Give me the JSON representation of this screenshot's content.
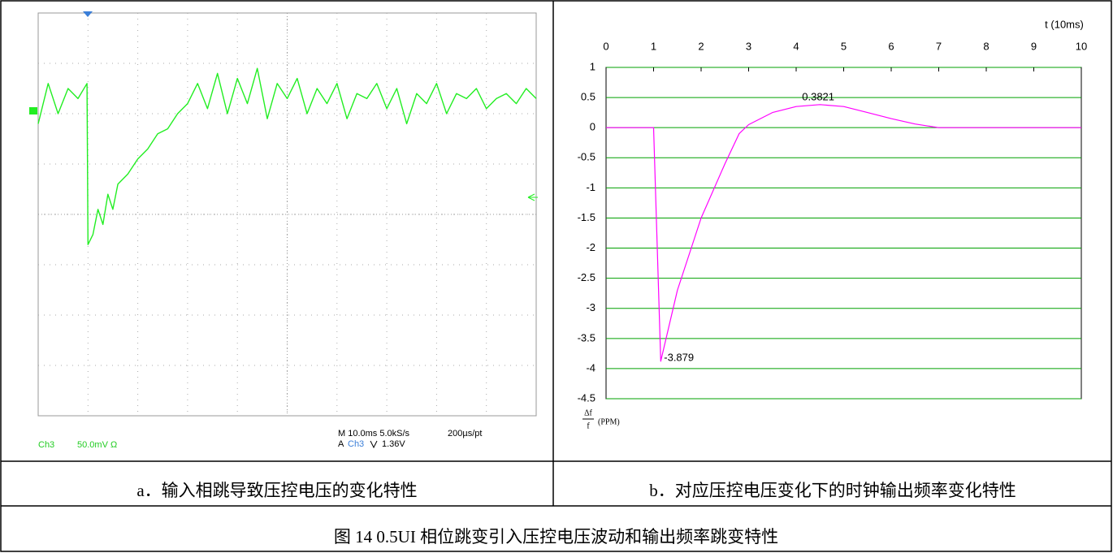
{
  "caption_a": "a．输入相跳导致压控电压的变化特性",
  "caption_b": "b．对应压控电压变化下的时钟输出频率变化特性",
  "figure_caption": "图 14  0.5UI 相位跳变引入压控电压波动和输出频率跳变特性",
  "chart_data": [
    {
      "type": "line",
      "color": "#22ee22",
      "x": [
        0,
        0.2,
        0.4,
        0.6,
        0.8,
        0.98,
        1.0,
        1.1,
        1.2,
        1.3,
        1.4,
        1.5,
        1.6,
        1.8,
        2.0,
        2.2,
        2.4,
        2.6,
        2.8,
        3.0,
        3.2,
        3.4,
        3.6,
        3.8,
        4.0,
        4.2,
        4.4,
        4.6,
        4.8,
        5.0,
        5.2,
        5.4,
        5.6,
        5.8,
        6.0,
        6.2,
        6.4,
        6.6,
        6.8,
        7.0,
        7.2,
        7.4,
        7.6,
        7.8,
        8.0,
        8.2,
        8.4,
        8.6,
        8.8,
        9.0,
        9.2,
        9.4,
        9.6,
        9.8,
        10.0
      ],
      "values": [
        1.8,
        2.6,
        2.0,
        2.5,
        2.3,
        2.6,
        -0.6,
        -0.4,
        0.1,
        -0.2,
        0.4,
        0.1,
        0.6,
        0.8,
        1.1,
        1.3,
        1.6,
        1.7,
        2.0,
        2.2,
        2.6,
        2.1,
        2.8,
        2.0,
        2.7,
        2.2,
        2.9,
        1.9,
        2.6,
        2.3,
        2.7,
        2.0,
        2.5,
        2.2,
        2.6,
        1.9,
        2.4,
        2.3,
        2.6,
        2.1,
        2.5,
        1.8,
        2.4,
        2.2,
        2.6,
        2.0,
        2.4,
        2.3,
        2.5,
        2.1,
        2.3,
        2.4,
        2.2,
        2.5,
        2.3
      ],
      "xlim": [
        0,
        10
      ],
      "ylim": [
        -4,
        4
      ],
      "readouts": {
        "channel": "Ch3",
        "scale": "50.0mV Ω",
        "timebase": "M 10.0ms 5.0kS/s",
        "resolution": "200µs/pt",
        "trigger_mode": "A",
        "trigger_source": "Ch3",
        "trigger_level": "1.36V"
      }
    },
    {
      "type": "line",
      "color": "#ff00ff",
      "grid": true,
      "grid_color": "#00a000",
      "x": [
        0,
        1,
        1.15,
        1.5,
        2,
        2.5,
        2.8,
        3,
        3.5,
        4,
        4.5,
        5,
        5.5,
        6,
        6.5,
        7,
        7.5,
        8,
        9,
        10
      ],
      "values": [
        0,
        0,
        -3.879,
        -2.7,
        -1.5,
        -0.6,
        -0.1,
        0.05,
        0.25,
        0.35,
        0.3821,
        0.35,
        0.25,
        0.15,
        0.06,
        0,
        0,
        0,
        0,
        0
      ],
      "xlim": [
        0,
        10
      ],
      "ylim": [
        -4.5,
        1
      ],
      "xticks": [
        0,
        1,
        2,
        3,
        4,
        5,
        6,
        7,
        8,
        9,
        10
      ],
      "yticks": [
        1,
        0.5,
        0,
        -0.5,
        -1,
        -1.5,
        -2,
        -2.5,
        -3,
        -3.5,
        -4,
        -4.5
      ],
      "x_label": "t (10ms)",
      "y_label": {
        "numerator": "Δf",
        "denominator": "f",
        "unit": "(PPM)"
      }
    }
  ]
}
